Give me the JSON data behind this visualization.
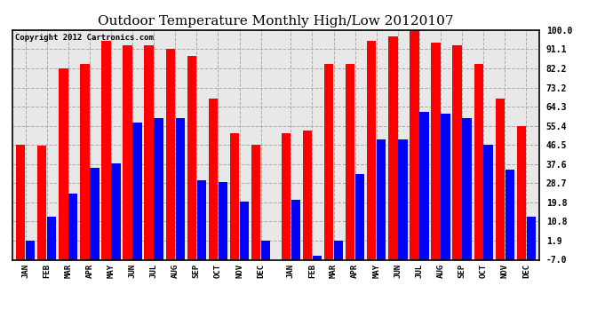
{
  "title": "Outdoor Temperature Monthly High/Low 20120107",
  "copyright": "Copyright 2012 Cartronics.com",
  "months_year1": [
    "JAN",
    "FEB",
    "MAR",
    "APR",
    "MAY",
    "JUN",
    "JUL",
    "AUG",
    "SEP",
    "OCT",
    "NOV",
    "DEC"
  ],
  "months_year2": [
    "JAN",
    "FEB",
    "MAR",
    "APR",
    "MAY",
    "JUN",
    "JUL",
    "AUG",
    "SEP",
    "OCT",
    "NOV",
    "DEC"
  ],
  "highs_year1": [
    46.5,
    46.0,
    82.2,
    84.0,
    95.0,
    93.0,
    93.0,
    91.1,
    88.0,
    68.0,
    52.0,
    46.5
  ],
  "lows_year1": [
    1.9,
    13.0,
    24.0,
    36.0,
    38.0,
    57.0,
    59.0,
    59.0,
    30.0,
    29.0,
    20.0,
    1.9
  ],
  "highs_year2": [
    52.0,
    53.0,
    84.0,
    84.0,
    95.0,
    97.0,
    100.0,
    94.0,
    93.0,
    84.0,
    68.0,
    55.4
  ],
  "lows_year2": [
    21.0,
    -5.0,
    1.9,
    33.0,
    49.0,
    49.0,
    62.0,
    61.0,
    59.0,
    46.5,
    35.0,
    13.0
  ],
  "yticks": [
    -7.0,
    1.9,
    10.8,
    19.8,
    28.7,
    37.6,
    46.5,
    55.4,
    64.3,
    73.2,
    82.2,
    91.1,
    100.0
  ],
  "ymin": -7.0,
  "ymax": 100.0,
  "bar_color_high": "#ff0000",
  "bar_color_low": "#0000ff",
  "background_color": "#ffffff",
  "plot_bg_color": "#e8e8e8",
  "grid_color": "#aaaaaa",
  "title_fontsize": 11,
  "copyright_fontsize": 6.5
}
